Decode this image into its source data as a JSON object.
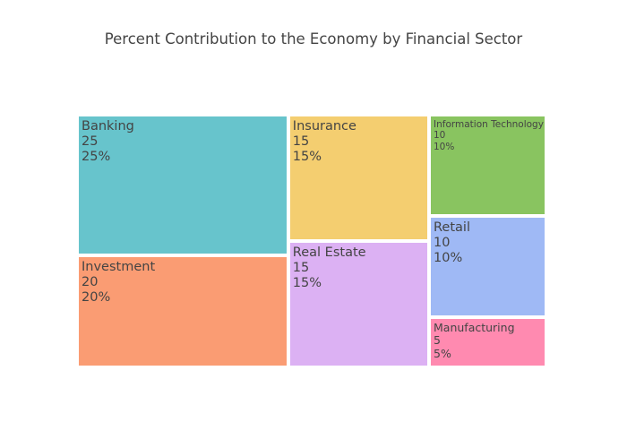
{
  "chart_data": {
    "type": "treemap",
    "title": "Percent Contribution to the Economy by Financial Sector",
    "items": [
      {
        "name": "Banking",
        "value": 25,
        "percent": "25%",
        "color": "#67c4cc"
      },
      {
        "name": "Investment",
        "value": 20,
        "percent": "20%",
        "color": "#fa9c73"
      },
      {
        "name": "Insurance",
        "value": 15,
        "percent": "15%",
        "color": "#f4ce70"
      },
      {
        "name": "Real Estate",
        "value": 15,
        "percent": "15%",
        "color": "#dcb1f3"
      },
      {
        "name": "Information Technology",
        "value": 10,
        "percent": "10%",
        "color": "#89c460"
      },
      {
        "name": "Retail",
        "value": 10,
        "percent": "10%",
        "color": "#9fb9f5"
      },
      {
        "name": "Manufacturing",
        "value": 5,
        "percent": "5%",
        "color": "#ff8ab0"
      }
    ]
  }
}
